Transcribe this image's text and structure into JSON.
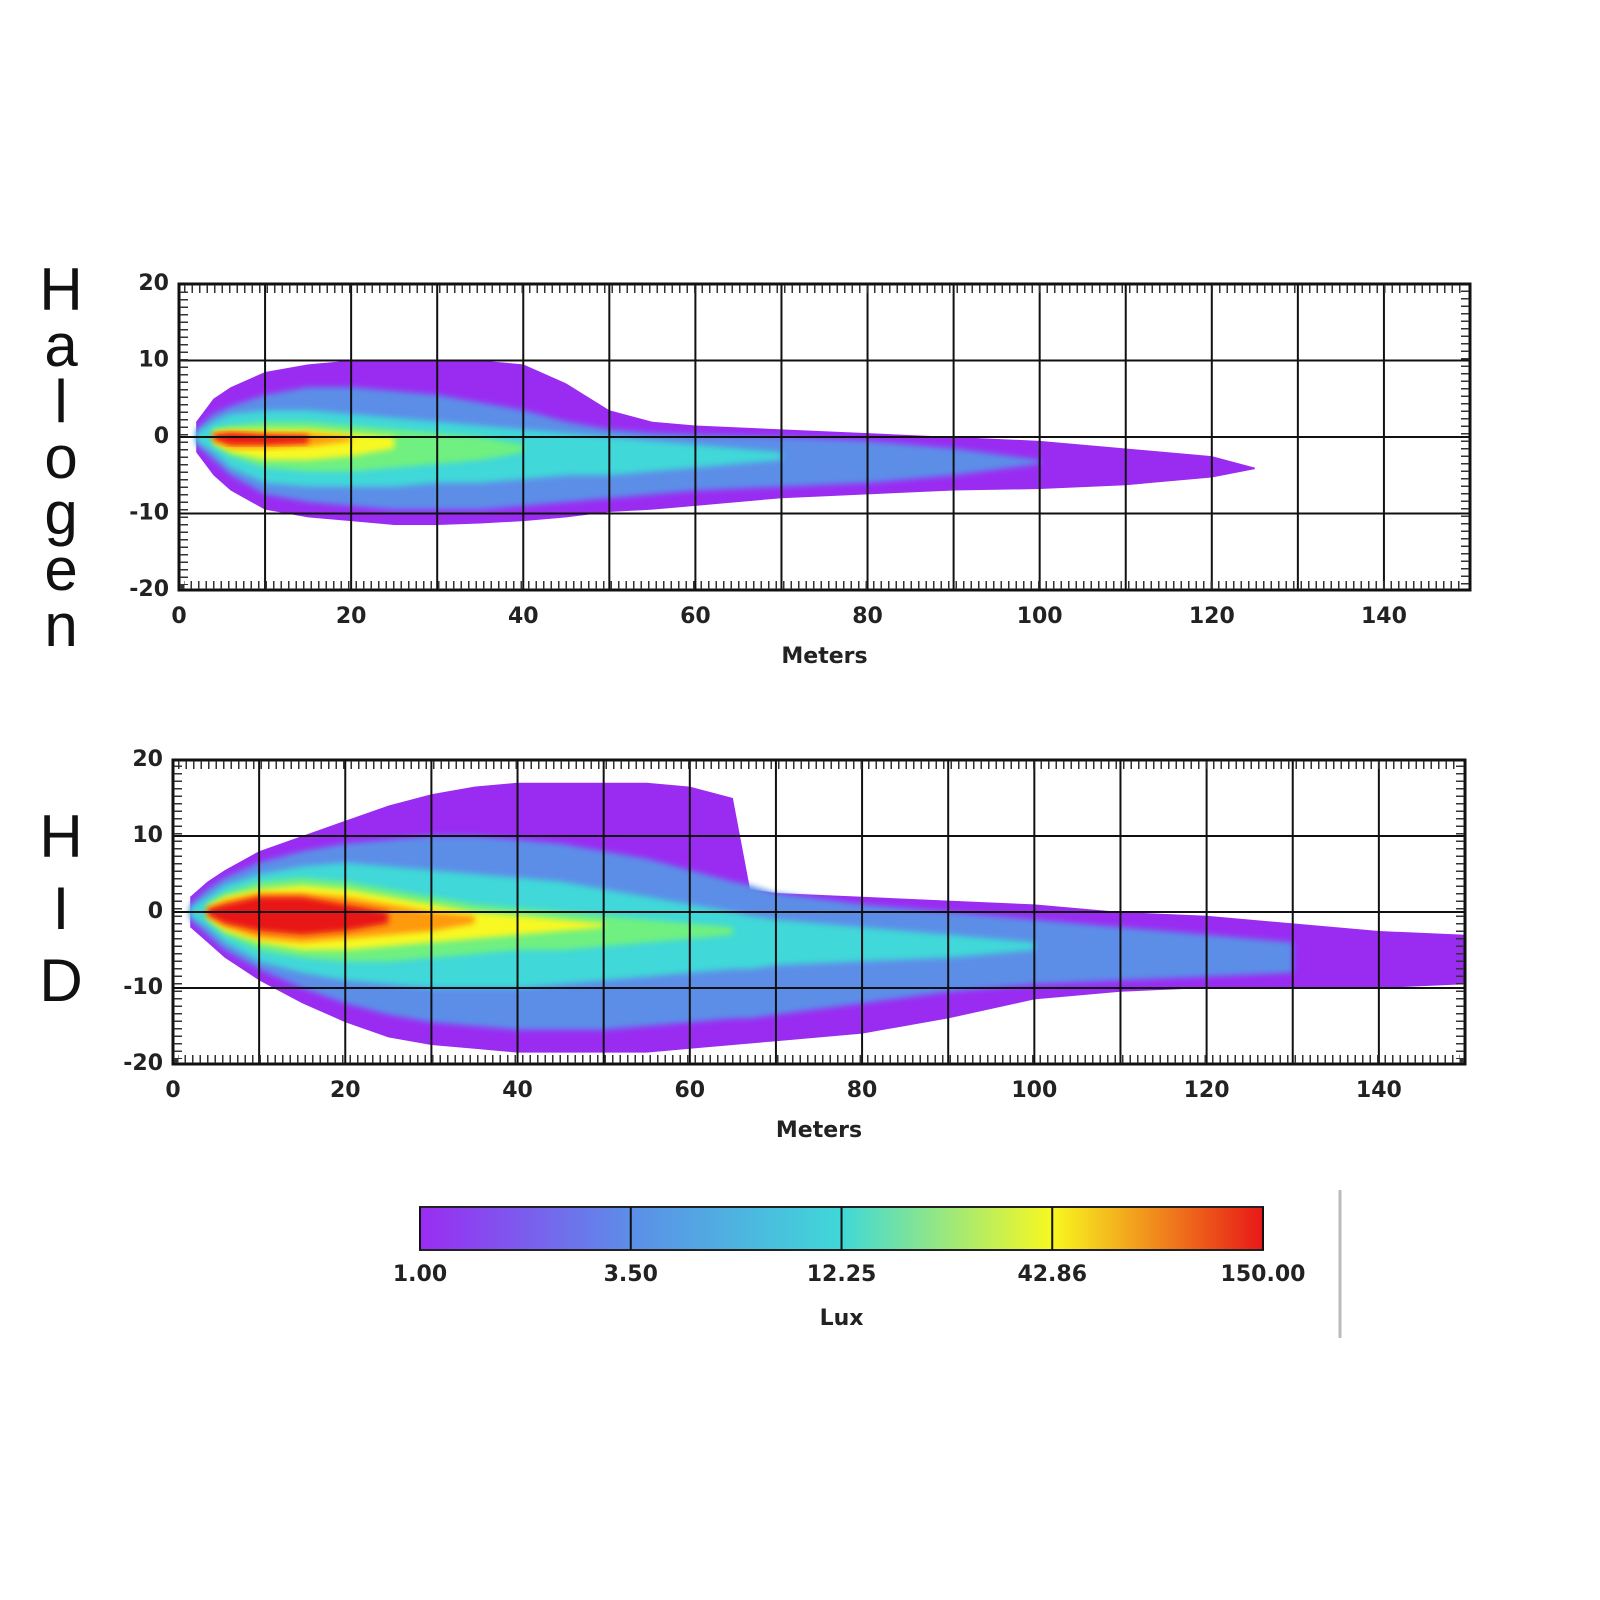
{
  "chart_data": [
    {
      "type": "contour",
      "title": "Halogen",
      "xlabel": "Meters",
      "xlim": [
        0,
        150
      ],
      "ylim": [
        -20,
        20
      ],
      "xticks": [
        0,
        20,
        40,
        60,
        80,
        100,
        120,
        140
      ],
      "minor_xticks": [
        10,
        30,
        50,
        70,
        90,
        110,
        130
      ],
      "yticks": [
        -20,
        -10,
        0,
        10,
        20
      ],
      "grid": true,
      "x": [
        2,
        4,
        6,
        10,
        15,
        20,
        25,
        30,
        35,
        40,
        45,
        50,
        55,
        60,
        70,
        80,
        90,
        100,
        110,
        120,
        125,
        130,
        140,
        150
      ],
      "series": [
        {
          "color": "#9a2cf2",
          "upper": [
            2,
            5,
            6.5,
            8.5,
            9.5,
            10,
            10,
            10,
            10,
            9.5,
            7,
            3.5,
            2,
            1.5,
            1,
            0.5,
            0,
            -0.5,
            -1.5,
            -2.5,
            -4,
            null,
            null,
            null
          ],
          "lower": [
            -2,
            -5,
            -7,
            -9.5,
            -10.5,
            -11,
            -11.5,
            -11.5,
            -11.3,
            -11,
            -10.5,
            -9.8,
            -9.5,
            -9,
            -8,
            -7.5,
            -7,
            -6.8,
            -6.3,
            -5.3,
            -4.2,
            null,
            null,
            null
          ]
        },
        {
          "color": "#5c8ee8",
          "upper": [
            1,
            3,
            4,
            5.5,
            6.5,
            6.5,
            6,
            5.5,
            4.5,
            3.5,
            2,
            1,
            0.5,
            0.3,
            0,
            -0.5,
            -1.5,
            -3,
            null,
            null,
            null,
            null,
            null,
            null
          ],
          "lower": [
            -1,
            -3,
            -5,
            -7.5,
            -8.5,
            -9,
            -9.5,
            -9.5,
            -9.5,
            -9,
            -8.5,
            -8,
            -7.5,
            -7,
            -6.5,
            -6,
            -5,
            -3.5,
            null,
            null,
            null,
            null,
            null,
            null
          ]
        },
        {
          "color": "#3fd8d8",
          "upper": [
            0.5,
            2,
            3,
            3.5,
            3.5,
            3,
            2.5,
            2,
            1.5,
            1,
            0.5,
            0,
            -0.5,
            -1,
            -2,
            null,
            null,
            null,
            null,
            null,
            null,
            null,
            null,
            null
          ],
          "lower": [
            -0.5,
            -2,
            -4,
            -6,
            -6.5,
            -6.5,
            -6.5,
            -6,
            -6,
            -5.5,
            -5,
            -5,
            -4.5,
            -4,
            -3,
            null,
            null,
            null,
            null,
            null,
            null,
            null,
            null,
            null
          ]
        },
        {
          "color": "#70f080",
          "upper": [
            null,
            1,
            1.5,
            2,
            2,
            1.5,
            1,
            0.5,
            0,
            -1,
            null,
            null,
            null,
            null,
            null,
            null,
            null,
            null,
            null,
            null,
            null,
            null,
            null,
            null
          ],
          "lower": [
            null,
            -1,
            -2.5,
            -4,
            -4.5,
            -4.5,
            -4,
            -3.5,
            -3,
            -2,
            null,
            null,
            null,
            null,
            null,
            null,
            null,
            null,
            null,
            null,
            null,
            null,
            null,
            null
          ]
        },
        {
          "color": "#f8f820",
          "upper": [
            null,
            0.8,
            1,
            1,
            1,
            0.5,
            0,
            null,
            null,
            null,
            null,
            null,
            null,
            null,
            null,
            null,
            null,
            null,
            null,
            null,
            null,
            null,
            null,
            null
          ],
          "lower": [
            null,
            -0.8,
            -2,
            -3,
            -3,
            -2.5,
            -1.5,
            null,
            null,
            null,
            null,
            null,
            null,
            null,
            null,
            null,
            null,
            null,
            null,
            null,
            null,
            null,
            null,
            null
          ]
        },
        {
          "color": "#ff9a10",
          "upper": [
            null,
            0.5,
            0.8,
            0.5,
            0.5,
            0,
            null,
            null,
            null,
            null,
            null,
            null,
            null,
            null,
            null,
            null,
            null,
            null,
            null,
            null,
            null,
            null,
            null,
            null
          ],
          "lower": [
            null,
            -0.5,
            -1.5,
            -1.5,
            -1.2,
            -0.5,
            null,
            null,
            null,
            null,
            null,
            null,
            null,
            null,
            null,
            null,
            null,
            null,
            null,
            null,
            null,
            null,
            null,
            null
          ]
        },
        {
          "color": "#e81818",
          "upper": [
            null,
            0.3,
            0.5,
            0.3,
            0.2,
            null,
            null,
            null,
            null,
            null,
            null,
            null,
            null,
            null,
            null,
            null,
            null,
            null,
            null,
            null,
            null,
            null,
            null,
            null
          ],
          "lower": [
            null,
            -0.3,
            -1,
            -1,
            -0.8,
            null,
            null,
            null,
            null,
            null,
            null,
            null,
            null,
            null,
            null,
            null,
            null,
            null,
            null,
            null,
            null,
            null,
            null,
            null
          ]
        }
      ]
    },
    {
      "type": "contour",
      "title": "HID",
      "xlabel": "Meters",
      "xlim": [
        0,
        150
      ],
      "ylim": [
        -20,
        20
      ],
      "xticks": [
        0,
        20,
        40,
        60,
        80,
        100,
        120,
        140
      ],
      "minor_xticks": [
        10,
        30,
        50,
        70,
        90,
        110,
        130
      ],
      "yticks": [
        -20,
        -10,
        0,
        10,
        20
      ],
      "grid": true,
      "x": [
        2,
        4,
        6,
        10,
        15,
        20,
        25,
        30,
        35,
        40,
        45,
        50,
        55,
        60,
        65,
        67,
        70,
        80,
        90,
        100,
        110,
        120,
        130,
        140,
        150
      ],
      "series": [
        {
          "color": "#9a2cf2",
          "upper": [
            2,
            4,
            5.5,
            8,
            10,
            12,
            14,
            15.5,
            16.5,
            17,
            17,
            17,
            17,
            16.5,
            15,
            3,
            2.5,
            2,
            1.5,
            1,
            0,
            -0.5,
            -1.5,
            -2.5,
            -3
          ],
          "lower": [
            -2,
            -4,
            -6,
            -9,
            -12,
            -14.5,
            -16.5,
            -17.5,
            -18,
            -18.5,
            -18.5,
            -18.5,
            -18.5,
            -18,
            -17.5,
            -17.3,
            -17,
            -16,
            -14,
            -11.5,
            -10.5,
            -10,
            -10,
            -10,
            -9.5
          ]
        },
        {
          "color": "#5c8ee8",
          "upper": [
            1,
            3,
            4.5,
            6.5,
            8,
            9,
            9.5,
            10,
            10,
            9.5,
            9,
            8,
            7,
            5.5,
            4,
            3.5,
            2.5,
            1,
            0,
            -1,
            -2,
            -3,
            -4,
            null,
            null
          ],
          "lower": [
            -1,
            -3,
            -5,
            -7.5,
            -10,
            -12,
            -13.5,
            -14.5,
            -15,
            -15.5,
            -15.5,
            -15.5,
            -15,
            -14.5,
            -14,
            -14,
            -13.5,
            -12,
            -10.5,
            -9.5,
            -9,
            -8.5,
            -8,
            null,
            null
          ]
        },
        {
          "color": "#3fd8d8",
          "upper": [
            0.5,
            2,
            3.5,
            5,
            6,
            6.5,
            6,
            5.5,
            5,
            4.5,
            4,
            3,
            2,
            1,
            0,
            -0.5,
            -1,
            -2,
            -3,
            -4,
            null,
            null,
            null,
            null,
            null
          ],
          "lower": [
            -0.5,
            -2,
            -4,
            -6.5,
            -8,
            -9,
            -9.5,
            -10,
            -10,
            -10,
            -9.5,
            -9,
            -8.5,
            -8,
            -7.5,
            -7.5,
            -7,
            -6.5,
            -6,
            -5,
            null,
            null,
            null,
            null,
            null
          ]
        },
        {
          "color": "#70f080",
          "upper": [
            null,
            1,
            2.5,
            4,
            4.5,
            4,
            3,
            2,
            1,
            0.5,
            0,
            -0.5,
            -1,
            -1.5,
            -2,
            null,
            null,
            null,
            null,
            null,
            null,
            null,
            null,
            null,
            null
          ],
          "lower": [
            null,
            -1,
            -3,
            -5,
            -6,
            -6.5,
            -6.5,
            -6,
            -5.5,
            -5,
            -5,
            -4.5,
            -4,
            -3.5,
            -3,
            null,
            null,
            null,
            null,
            null,
            null,
            null,
            null,
            null,
            null
          ]
        },
        {
          "color": "#f8f820",
          "upper": [
            null,
            0.8,
            2,
            3,
            3.5,
            3,
            2,
            1,
            0,
            -0.5,
            -1,
            -1.5,
            null,
            null,
            null,
            null,
            null,
            null,
            null,
            null,
            null,
            null,
            null,
            null,
            null
          ],
          "lower": [
            null,
            -0.8,
            -2.5,
            -4,
            -5,
            -5,
            -4.5,
            -4,
            -3.5,
            -3,
            -2.5,
            -2,
            null,
            null,
            null,
            null,
            null,
            null,
            null,
            null,
            null,
            null,
            null,
            null,
            null
          ]
        },
        {
          "color": "#ff9a10",
          "upper": [
            null,
            0.5,
            1.5,
            2.5,
            2.5,
            2,
            1,
            0,
            -0.5,
            null,
            null,
            null,
            null,
            null,
            null,
            null,
            null,
            null,
            null,
            null,
            null,
            null,
            null,
            null,
            null
          ],
          "lower": [
            null,
            -0.5,
            -2,
            -3.5,
            -4,
            -3.5,
            -3,
            -2.5,
            -1.5,
            null,
            null,
            null,
            null,
            null,
            null,
            null,
            null,
            null,
            null,
            null,
            null,
            null,
            null,
            null,
            null
          ]
        },
        {
          "color": "#e81818",
          "upper": [
            null,
            0.4,
            1,
            2,
            2,
            1,
            0,
            null,
            null,
            null,
            null,
            null,
            null,
            null,
            null,
            null,
            null,
            null,
            null,
            null,
            null,
            null,
            null,
            null,
            null
          ],
          "lower": [
            null,
            -0.4,
            -1.5,
            -2.5,
            -3,
            -2.5,
            -1.5,
            null,
            null,
            null,
            null,
            null,
            null,
            null,
            null,
            null,
            null,
            null,
            null,
            null,
            null,
            null,
            null,
            null,
            null
          ]
        }
      ]
    },
    {
      "type": "colorbar",
      "label": "Lux",
      "log": true,
      "clim": [
        1,
        150
      ],
      "ticks": [
        {
          "value": 1,
          "label": "1.00"
        },
        {
          "value": 3.5,
          "label": "3.50"
        },
        {
          "value": 12.25,
          "label": "12.25"
        },
        {
          "value": 42.86,
          "label": "42.86"
        },
        {
          "value": 150,
          "label": "150.00"
        }
      ],
      "colors": [
        "#9a2cf2",
        "#5c8ee8",
        "#3fd8d8",
        "#f8f820",
        "#e81818"
      ]
    }
  ]
}
